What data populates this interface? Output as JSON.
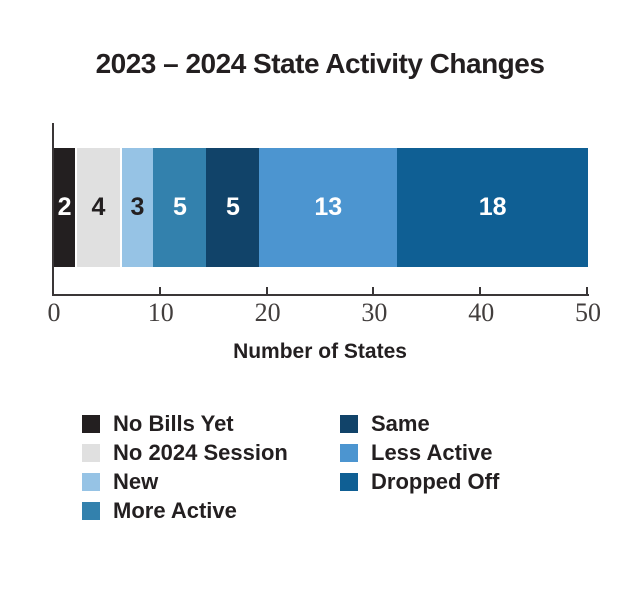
{
  "chart_data": {
    "type": "bar",
    "orientation": "horizontal",
    "stacked": true,
    "title": "2023 – 2024 State Activity Changes",
    "xlabel": "Number of States",
    "xlim": [
      0,
      50
    ],
    "x_ticks": [
      0,
      10,
      20,
      30,
      40,
      50
    ],
    "grid": false,
    "axis_color": "#3a3637",
    "tick_label_color": "#423e3d",
    "segments": [
      {
        "label": "No Bills Yet",
        "value": 2,
        "color": "#231f20",
        "text_color": "#ffffff"
      },
      {
        "label": "No 2024 Session",
        "value": 4,
        "color": "#e0e0e0",
        "text_color": "#231f20"
      },
      {
        "label": "New",
        "value": 3,
        "color": "#96c3e5",
        "text_color": "#231f20"
      },
      {
        "label": "More Active",
        "value": 5,
        "color": "#3381ad",
        "text_color": "#ffffff"
      },
      {
        "label": "Same",
        "value": 5,
        "color": "#114369",
        "text_color": "#ffffff"
      },
      {
        "label": "Less Active",
        "value": 13,
        "color": "#4c95d0",
        "text_color": "#ffffff"
      },
      {
        "label": "Dropped Off",
        "value": 18,
        "color": "#0f5f94",
        "text_color": "#ffffff"
      }
    ],
    "legend": {
      "position": "bottom",
      "columns": [
        [
          "No Bills Yet",
          "No 2024 Session",
          "New",
          "More Active"
        ],
        [
          "Same",
          "Less Active",
          "Dropped Off"
        ]
      ]
    }
  }
}
